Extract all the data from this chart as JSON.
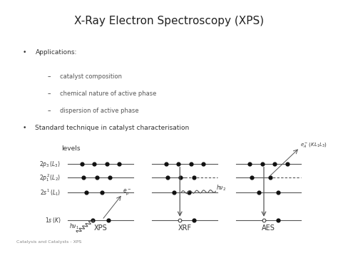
{
  "title": "X-Ray Electron Spectroscopy (XPS)",
  "title_bg": "#e8e8e8",
  "slide_bg": "#ffffff",
  "title_fontsize": 11,
  "footer": "Catalysis and Catalysts - XPS",
  "bullet_points": [
    {
      "text": "Applications:",
      "level": 0
    },
    {
      "text": "catalyst composition",
      "level": 1
    },
    {
      "text": "chemical nature of active phase",
      "level": 1
    },
    {
      "text": "dispersion of active phase",
      "level": 1
    },
    {
      "text": "Standard technique in catalyst characterisation",
      "level": 0
    }
  ],
  "diagram": {
    "levels_label": "levels",
    "col_labels": [
      "XPS",
      "XRF",
      "AES"
    ],
    "level_label_texts": [
      "$2p_3\\,(L_3)$",
      "$2p_1^2\\,(L_2)$",
      "$2s^1\\,(L_1)$",
      "$1s\\,(K)$"
    ]
  },
  "text_color": "#333333",
  "line_color": "#555555",
  "dot_color": "#111111"
}
